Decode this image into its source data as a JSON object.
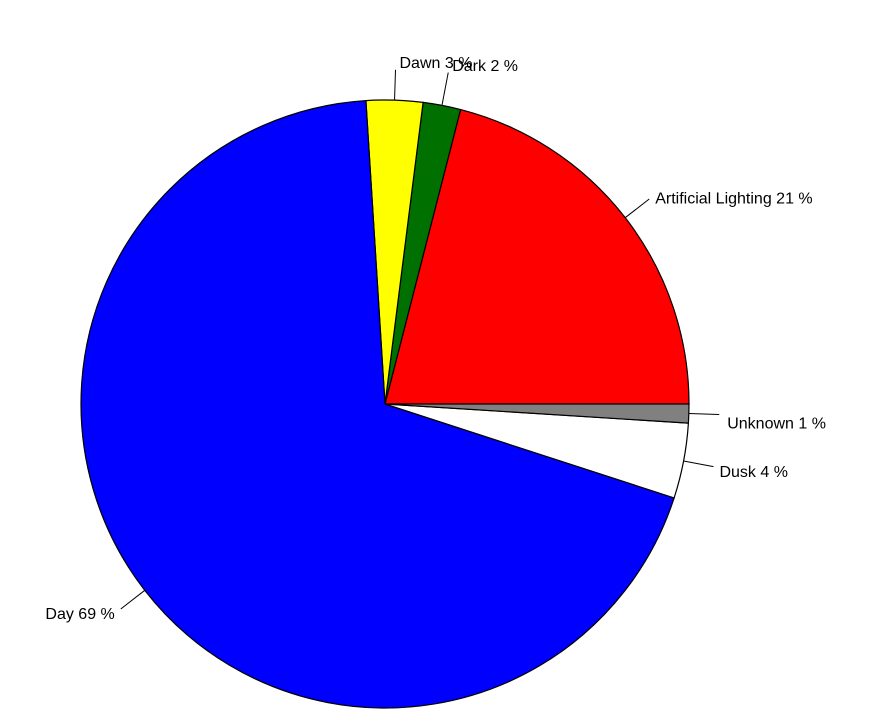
{
  "chart_data": {
    "type": "pie",
    "title": "",
    "slices": [
      {
        "label": "Artificial Lighting",
        "value": 21,
        "display": "Artificial Lighting 21 %",
        "color": "#ff0000"
      },
      {
        "label": "Dark",
        "value": 2,
        "display": "Dark 2 %",
        "color": "#007000"
      },
      {
        "label": "Dawn",
        "value": 3,
        "display": "Dawn 3 %",
        "color": "#ffff00"
      },
      {
        "label": "Day",
        "value": 69,
        "display": "Day 69 %",
        "color": "#0000ff"
      },
      {
        "label": "Dusk",
        "value": 4,
        "display": "Dusk 4 %",
        "color": "#ffffff"
      },
      {
        "label": "Unknown",
        "value": 1,
        "display": "Unknown 1 %",
        "color": "#808080"
      }
    ],
    "start_direction": "3 o'clock",
    "direction": "counter-clockwise",
    "legend": "none"
  }
}
